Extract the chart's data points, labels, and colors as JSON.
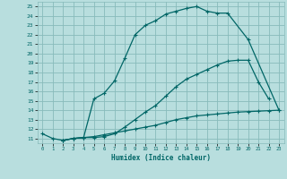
{
  "xlabel": "Humidex (Indice chaleur)",
  "bg_color": "#b8dede",
  "grid_color": "#88bbbb",
  "line_color": "#006666",
  "xlim": [
    -0.5,
    23.5
  ],
  "ylim": [
    10.5,
    25.5
  ],
  "xticks": [
    0,
    1,
    2,
    3,
    4,
    5,
    6,
    7,
    8,
    9,
    10,
    11,
    12,
    13,
    14,
    15,
    16,
    17,
    18,
    19,
    20,
    21,
    22,
    23
  ],
  "yticks": [
    11,
    12,
    13,
    14,
    15,
    16,
    17,
    18,
    19,
    20,
    21,
    22,
    23,
    24,
    25
  ],
  "line1_x": [
    0,
    1,
    2,
    3,
    4,
    5,
    6,
    7,
    8,
    9,
    10,
    11,
    12,
    13,
    14,
    15,
    16,
    17,
    18,
    20,
    23
  ],
  "line1_y": [
    11.5,
    11.0,
    10.8,
    11.0,
    11.1,
    15.2,
    15.8,
    17.1,
    19.5,
    22.0,
    23.0,
    23.5,
    24.2,
    24.5,
    24.8,
    25.0,
    24.5,
    24.3,
    24.3,
    21.5,
    14.0
  ],
  "line2_x": [
    2,
    3,
    4,
    5,
    6,
    7,
    8,
    9,
    10,
    11,
    12,
    13,
    14,
    15,
    16,
    17,
    18,
    19,
    20,
    21,
    22
  ],
  "line2_y": [
    10.8,
    11.0,
    11.1,
    11.1,
    11.2,
    11.5,
    12.2,
    13.0,
    13.8,
    14.5,
    15.5,
    16.5,
    17.3,
    17.8,
    18.3,
    18.8,
    19.2,
    19.3,
    19.3,
    17.0,
    15.2
  ],
  "line3_x": [
    2,
    3,
    4,
    5,
    6,
    7,
    8,
    9,
    10,
    11,
    12,
    13,
    14,
    15,
    16,
    17,
    18,
    19,
    20,
    21,
    22,
    23
  ],
  "line3_y": [
    10.8,
    11.0,
    11.1,
    11.2,
    11.4,
    11.6,
    11.8,
    12.0,
    12.2,
    12.4,
    12.7,
    13.0,
    13.2,
    13.4,
    13.5,
    13.6,
    13.7,
    13.8,
    13.85,
    13.9,
    13.95,
    14.0
  ]
}
